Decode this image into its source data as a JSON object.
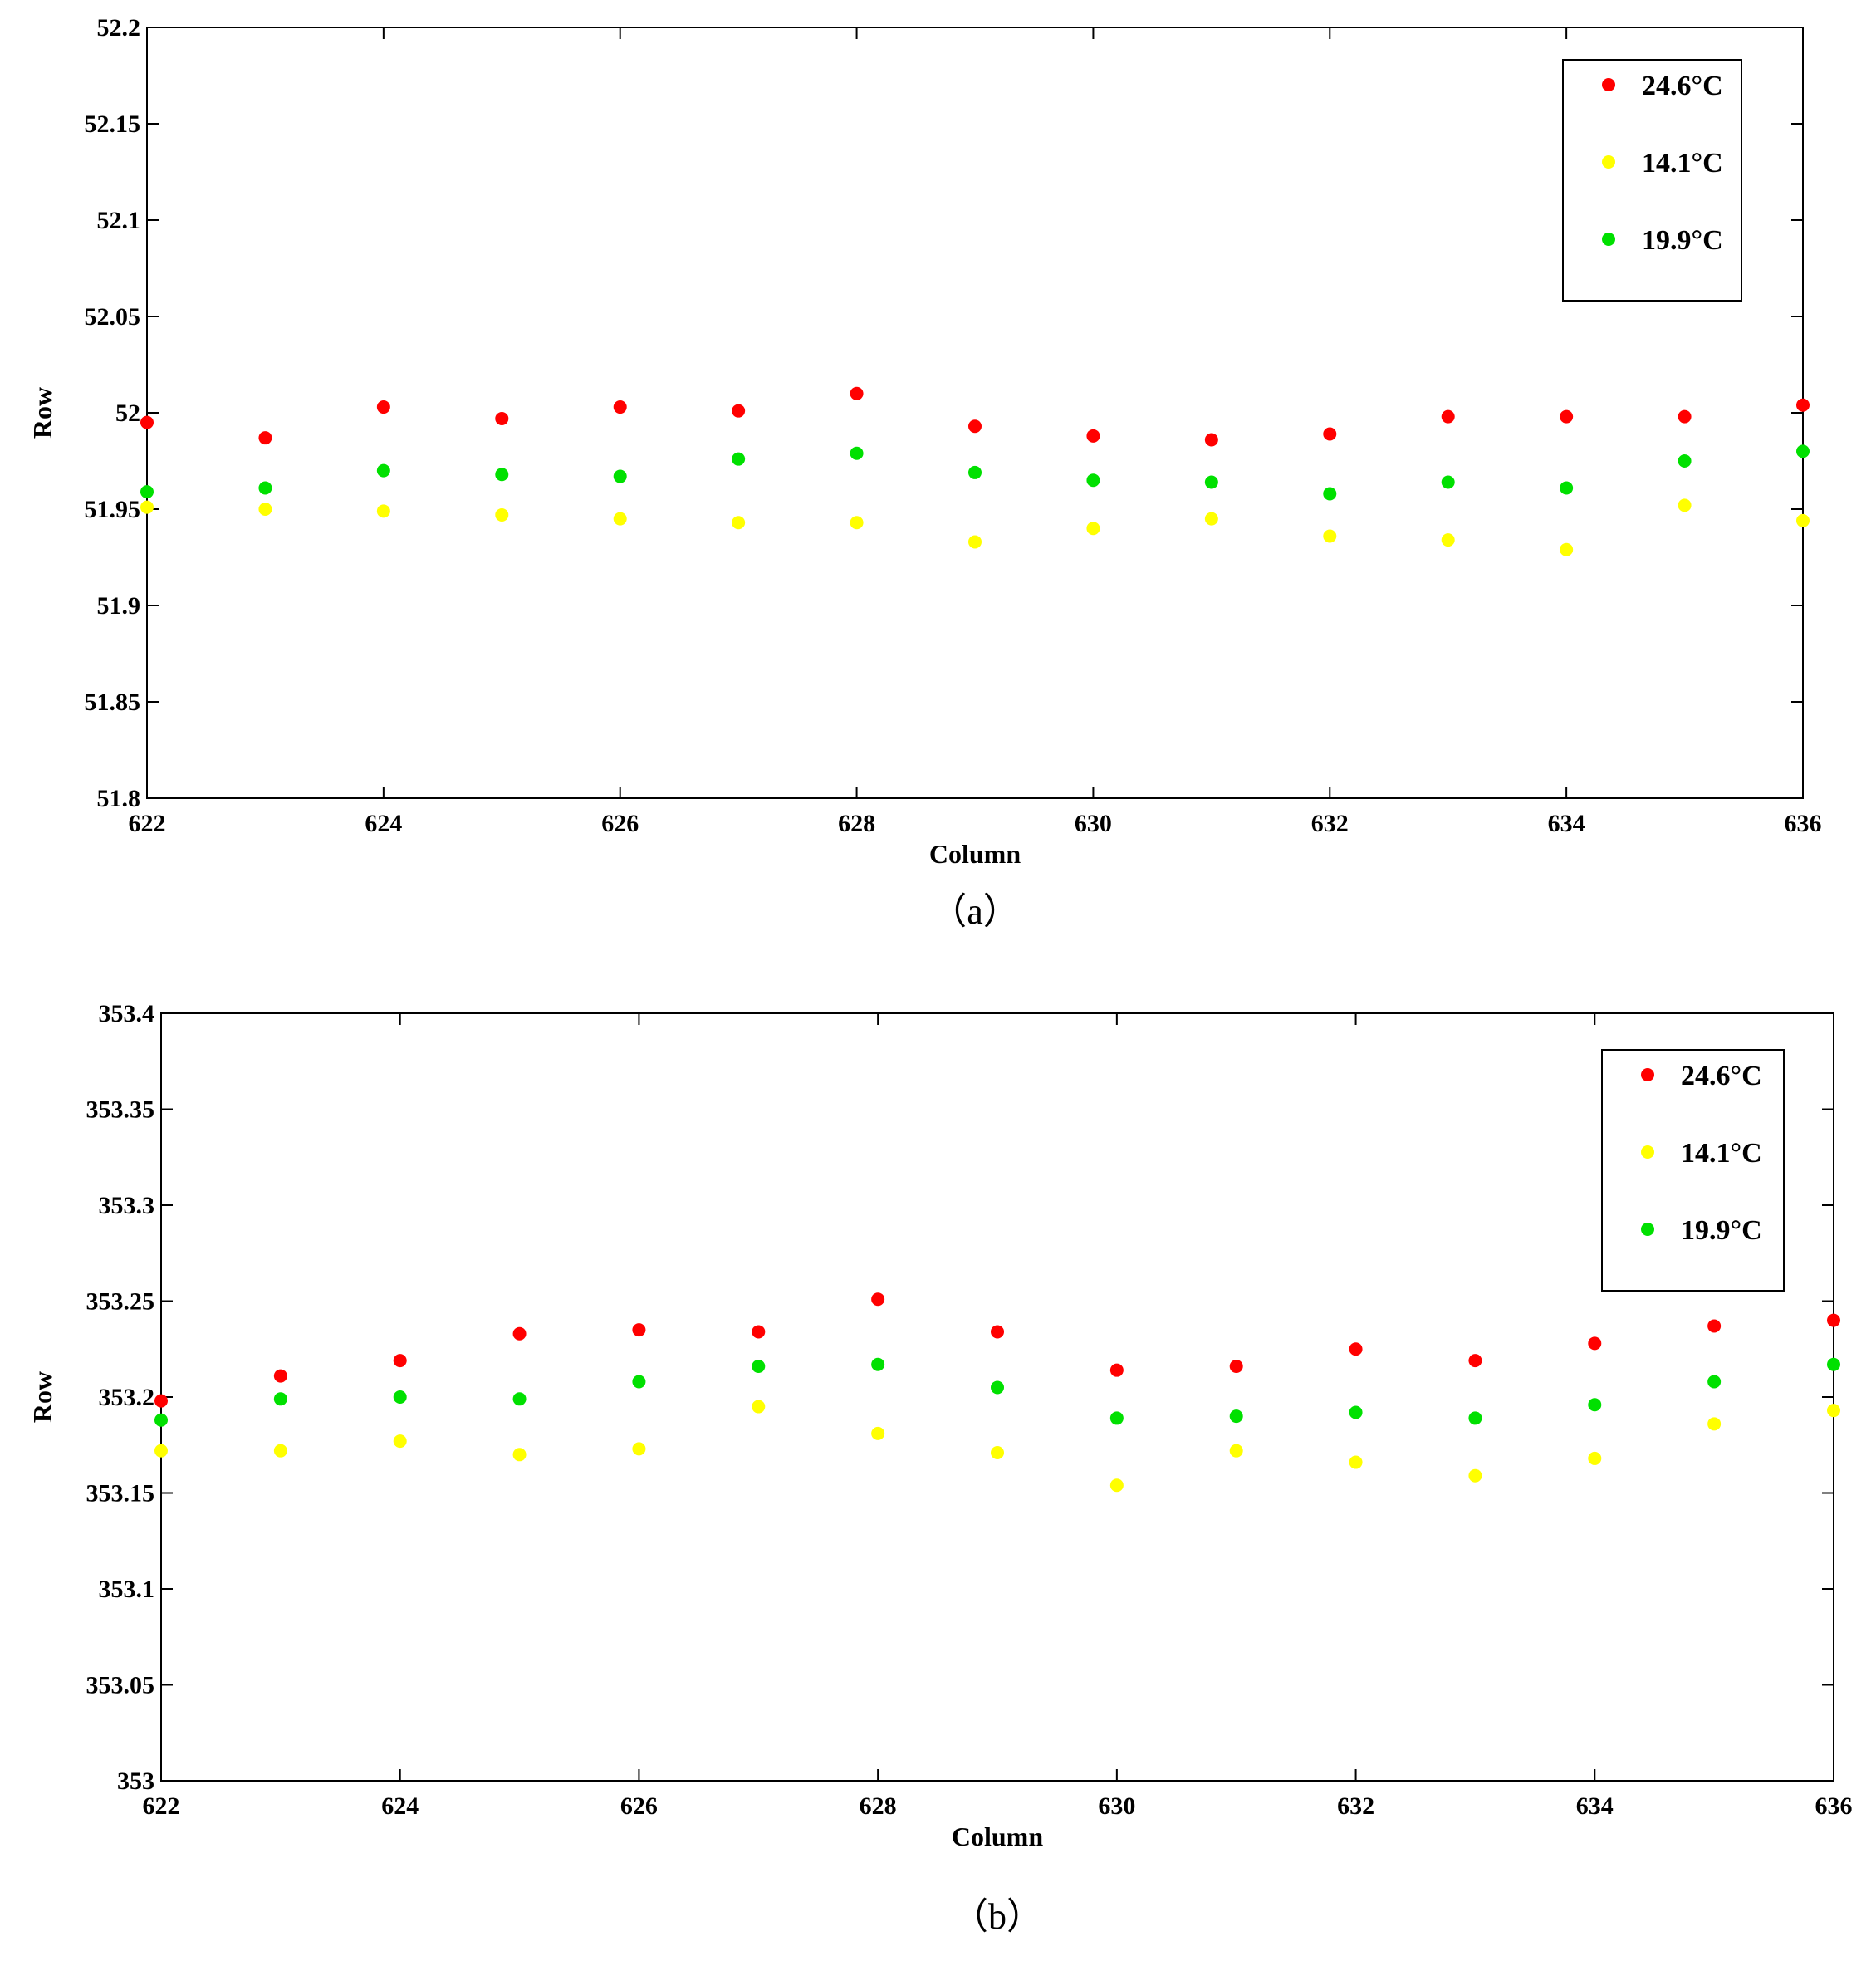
{
  "chart_data": [
    {
      "type": "scatter",
      "caption": "（a）",
      "xlabel": "Column",
      "ylabel": "Row",
      "xlim": [
        622,
        636
      ],
      "ylim": [
        51.8,
        52.2
      ],
      "xticks": [
        "622",
        "624",
        "626",
        "628",
        "630",
        "632",
        "634",
        "636"
      ],
      "yticks": [
        "51.8",
        "51.85",
        "51.9",
        "51.95",
        "52",
        "52.05",
        "52.1",
        "52.15",
        "52.2"
      ],
      "legend_position": "top-right",
      "grid": false,
      "x": [
        622,
        623,
        624,
        625,
        626,
        627,
        628,
        629,
        630,
        631,
        632,
        633,
        634,
        635,
        636
      ],
      "series": [
        {
          "name": "24.6°C",
          "color": "#ff0000",
          "values": [
            51.995,
            51.987,
            52.003,
            51.997,
            52.003,
            52.001,
            52.01,
            51.993,
            51.988,
            51.986,
            51.989,
            51.998,
            51.998,
            51.998,
            52.004
          ]
        },
        {
          "name": "14.1°C",
          "color": "#ffff00",
          "values": [
            51.951,
            51.95,
            51.949,
            51.947,
            51.945,
            51.943,
            51.943,
            51.933,
            51.94,
            51.945,
            51.936,
            51.934,
            51.929,
            51.952,
            51.944
          ]
        },
        {
          "name": "19.9°C",
          "color": "#00e000",
          "values": [
            51.959,
            51.961,
            51.97,
            51.968,
            51.967,
            51.976,
            51.979,
            51.969,
            51.965,
            51.964,
            51.958,
            51.964,
            51.961,
            51.975,
            51.98
          ]
        }
      ]
    },
    {
      "type": "scatter",
      "caption": "（b）",
      "xlabel": "Column",
      "ylabel": "Row",
      "xlim": [
        622,
        636
      ],
      "ylim": [
        353,
        353.4
      ],
      "xticks": [
        "622",
        "624",
        "626",
        "628",
        "630",
        "632",
        "634",
        "636"
      ],
      "yticks": [
        "353",
        "353.05",
        "353.1",
        "353.15",
        "353.2",
        "353.25",
        "353.3",
        "353.35",
        "353.4"
      ],
      "legend_position": "top-right",
      "grid": false,
      "x": [
        622,
        623,
        624,
        625,
        626,
        627,
        628,
        629,
        630,
        631,
        632,
        633,
        634,
        635,
        636
      ],
      "series": [
        {
          "name": "24.6°C",
          "color": "#ff0000",
          "values": [
            353.198,
            353.211,
            353.219,
            353.233,
            353.235,
            353.234,
            353.251,
            353.234,
            353.214,
            353.216,
            353.225,
            353.219,
            353.228,
            353.237,
            353.24
          ]
        },
        {
          "name": "14.1°C",
          "color": "#ffff00",
          "values": [
            353.172,
            353.172,
            353.177,
            353.17,
            353.173,
            353.195,
            353.181,
            353.171,
            353.154,
            353.172,
            353.166,
            353.159,
            353.168,
            353.186,
            353.193
          ]
        },
        {
          "name": "19.9°C",
          "color": "#00e000",
          "values": [
            353.188,
            353.199,
            353.2,
            353.199,
            353.208,
            353.216,
            353.217,
            353.205,
            353.189,
            353.19,
            353.192,
            353.189,
            353.196,
            353.208,
            353.217
          ]
        }
      ]
    }
  ]
}
